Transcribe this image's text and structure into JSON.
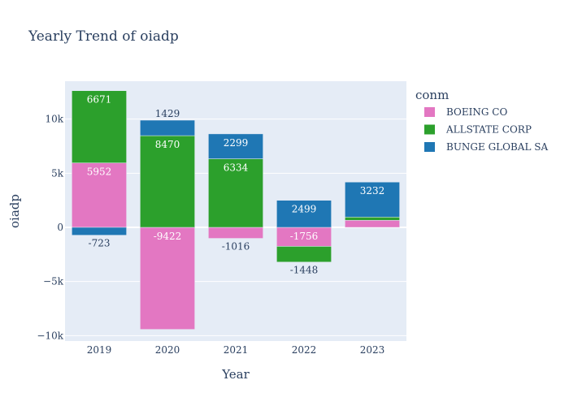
{
  "chart_data": {
    "type": "bar",
    "barmode": "relative",
    "title": "Yearly Trend of oiadp",
    "xlabel": "Year",
    "ylabel": "oiadp",
    "categories": [
      "2019",
      "2020",
      "2021",
      "2022",
      "2023"
    ],
    "ylim": [
      -10500,
      13500
    ],
    "yticks": [
      -10000,
      -5000,
      0,
      5000,
      10000
    ],
    "ytick_labels": [
      "−10k",
      "−5k",
      "0",
      "5k",
      "10k"
    ],
    "legend_title": "conm",
    "legend_position": "top-right",
    "plot_background": "#e5ecf6",
    "grid": true,
    "series": [
      {
        "name": "BOEING CO",
        "color": "#e377c2",
        "values": [
          5952,
          -9422,
          -1016,
          -1756,
          650
        ],
        "labels": [
          "5952",
          "-9422",
          "-1016",
          "-1756",
          ""
        ]
      },
      {
        "name": "ALLSTATE CORP",
        "color": "#2ca02c",
        "values": [
          6671,
          8470,
          6334,
          -1448,
          300
        ],
        "labels": [
          "6671",
          "8470",
          "6334",
          "-1448",
          ""
        ]
      },
      {
        "name": "BUNGE GLOBAL SA",
        "color": "#1f77b4",
        "values": [
          -723,
          1429,
          2299,
          2499,
          3232
        ],
        "labels": [
          "-723",
          "1429",
          "2299",
          "2499",
          "3232"
        ]
      }
    ]
  }
}
